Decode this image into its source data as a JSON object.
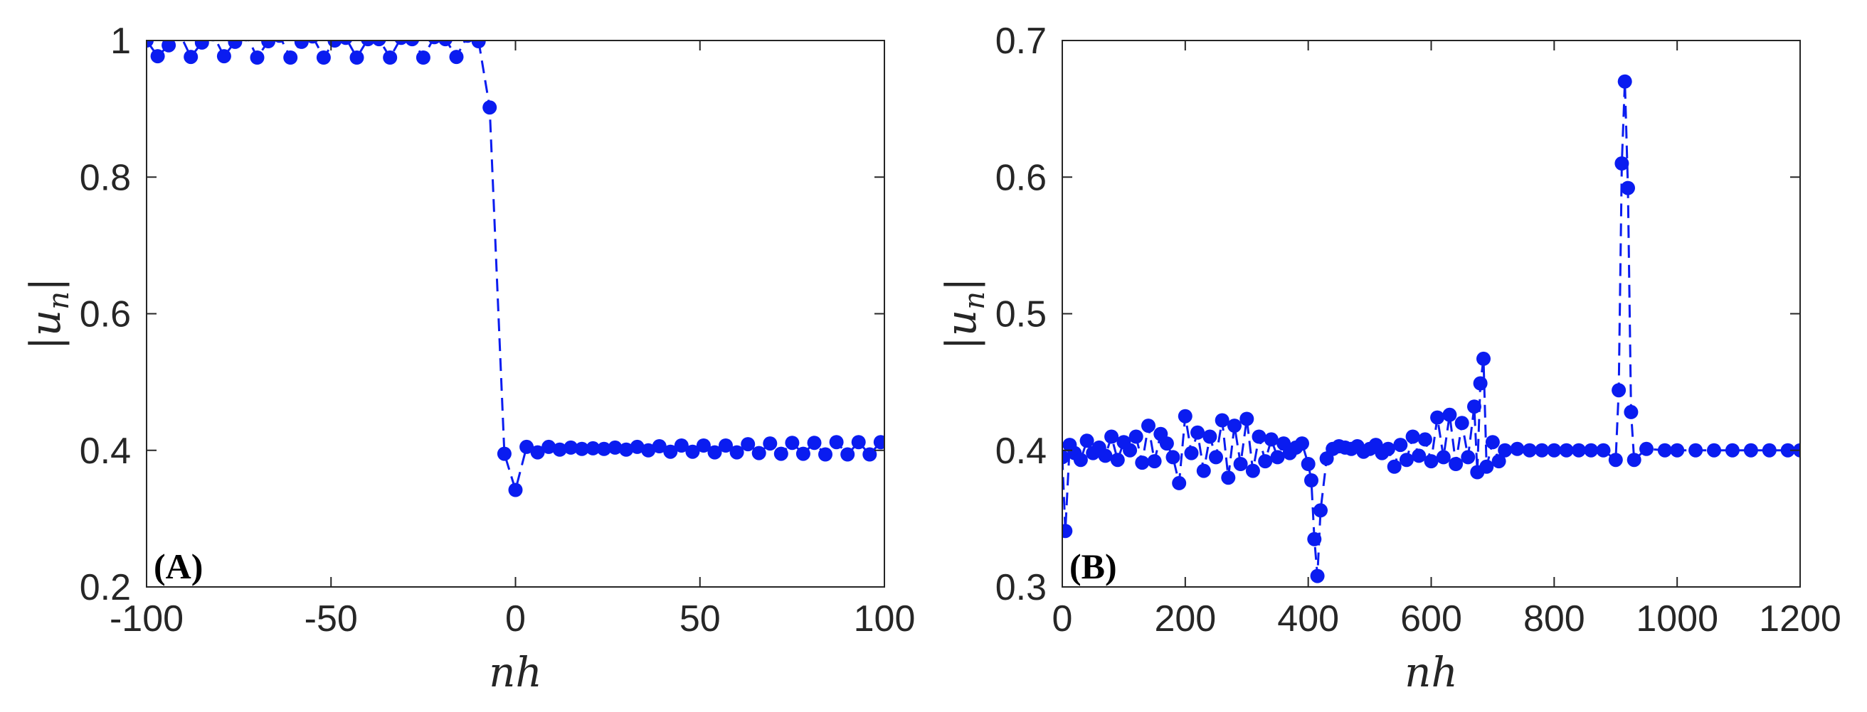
{
  "colors": {
    "series": "#0a1cf0",
    "axis": "#262626"
  },
  "chart_data": [
    {
      "type": "line",
      "panel_label": "(A)",
      "xlabel": "nh",
      "ylabel": "|u_n|",
      "xlim": [
        -100,
        100
      ],
      "ylim": [
        0.2,
        1.0
      ],
      "xticks": [
        -100,
        -50,
        0,
        50,
        100
      ],
      "yticks": [
        0.2,
        0.4,
        0.6,
        0.8,
        1.0
      ],
      "xtick_labels": [
        "-100",
        "-50",
        "0",
        "50",
        "100"
      ],
      "ytick_labels": [
        "0.2",
        "0.4",
        "0.6",
        "0.8",
        "1"
      ],
      "grid": false,
      "marker": "circle",
      "line_style": "dashed",
      "series": [
        {
          "x": [
            -100,
            -97,
            -94,
            -91,
            -88,
            -85,
            -82,
            -79,
            -76,
            -73,
            -70,
            -67,
            -64,
            -61,
            -58,
            -55,
            -52,
            -49,
            -46,
            -43,
            -40,
            -37,
            -34,
            -31,
            -28,
            -25,
            -22,
            -19,
            -16,
            -13,
            -10,
            -7,
            -3,
            0,
            3,
            6,
            9,
            12,
            15,
            18,
            21,
            24,
            27,
            30,
            33,
            36,
            39,
            42,
            45,
            48,
            51,
            54,
            57,
            60,
            63,
            66,
            69,
            72,
            75,
            78,
            81,
            84,
            87,
            90,
            93,
            96,
            99
          ],
          "y": [
            1.0,
            0.977,
            0.993,
            1.01,
            0.976,
            0.997,
            1.009,
            0.977,
            0.998,
            1.009,
            0.975,
            0.999,
            1.007,
            0.975,
            0.998,
            1.006,
            0.975,
            1.0,
            1.004,
            0.975,
            1.002,
            1.002,
            0.975,
            1.004,
            1.002,
            0.975,
            1.005,
            1.002,
            0.976,
            1.007,
            0.999,
            0.902,
            0.395,
            0.342,
            0.405,
            0.397,
            0.405,
            0.401,
            0.404,
            0.402,
            0.403,
            0.402,
            0.404,
            0.401,
            0.405,
            0.4,
            0.406,
            0.398,
            0.407,
            0.398,
            0.407,
            0.397,
            0.407,
            0.397,
            0.409,
            0.396,
            0.41,
            0.395,
            0.411,
            0.395,
            0.411,
            0.394,
            0.412,
            0.394,
            0.412,
            0.394,
            0.412
          ]
        }
      ]
    },
    {
      "type": "line",
      "panel_label": "(B)",
      "xlabel": "nh",
      "ylabel": "|u_n|",
      "xlim": [
        0,
        1200
      ],
      "ylim": [
        0.3,
        0.7
      ],
      "xticks": [
        0,
        200,
        400,
        600,
        800,
        1000,
        1200
      ],
      "yticks": [
        0.3,
        0.4,
        0.5,
        0.6,
        0.7
      ],
      "xtick_labels": [
        "0",
        "200",
        "400",
        "600",
        "800",
        "1000",
        "1200"
      ],
      "ytick_labels": [
        "0.3",
        "0.4",
        "0.5",
        "0.6",
        "0.7"
      ],
      "grid": false,
      "marker": "circle",
      "line_style": "dashed",
      "series": [
        {
          "x": [
            0,
            5,
            12,
            20,
            30,
            40,
            50,
            60,
            70,
            80,
            90,
            100,
            110,
            120,
            130,
            140,
            150,
            160,
            170,
            180,
            190,
            200,
            210,
            220,
            230,
            240,
            250,
            260,
            270,
            280,
            290,
            300,
            310,
            320,
            330,
            340,
            350,
            360,
            370,
            380,
            390,
            400,
            405,
            410,
            415,
            420,
            430,
            440,
            450,
            460,
            470,
            480,
            490,
            500,
            510,
            520,
            530,
            540,
            550,
            560,
            570,
            580,
            590,
            600,
            610,
            620,
            630,
            640,
            650,
            660,
            670,
            675,
            680,
            685,
            690,
            700,
            710,
            720,
            740,
            760,
            780,
            800,
            820,
            840,
            860,
            880,
            900,
            905,
            910,
            915,
            920,
            925,
            930,
            950,
            980,
            1000,
            1030,
            1060,
            1090,
            1120,
            1150,
            1180,
            1200
          ],
          "y": [
            0.395,
            0.341,
            0.404,
            0.398,
            0.393,
            0.407,
            0.398,
            0.402,
            0.396,
            0.41,
            0.393,
            0.406,
            0.4,
            0.41,
            0.391,
            0.418,
            0.392,
            0.412,
            0.405,
            0.395,
            0.376,
            0.425,
            0.398,
            0.413,
            0.385,
            0.41,
            0.395,
            0.422,
            0.38,
            0.418,
            0.39,
            0.423,
            0.385,
            0.41,
            0.392,
            0.408,
            0.395,
            0.405,
            0.398,
            0.402,
            0.405,
            0.39,
            0.378,
            0.335,
            0.308,
            0.356,
            0.394,
            0.401,
            0.403,
            0.402,
            0.401,
            0.403,
            0.399,
            0.401,
            0.404,
            0.398,
            0.401,
            0.388,
            0.404,
            0.393,
            0.41,
            0.396,
            0.408,
            0.392,
            0.424,
            0.395,
            0.426,
            0.39,
            0.42,
            0.395,
            0.432,
            0.384,
            0.449,
            0.467,
            0.388,
            0.406,
            0.392,
            0.4,
            0.401,
            0.4,
            0.4,
            0.4,
            0.4,
            0.4,
            0.4,
            0.4,
            0.393,
            0.444,
            0.61,
            0.67,
            0.592,
            0.428,
            0.393,
            0.401,
            0.4,
            0.4,
            0.4,
            0.4,
            0.4,
            0.4,
            0.4,
            0.4,
            0.4
          ]
        }
      ]
    }
  ]
}
